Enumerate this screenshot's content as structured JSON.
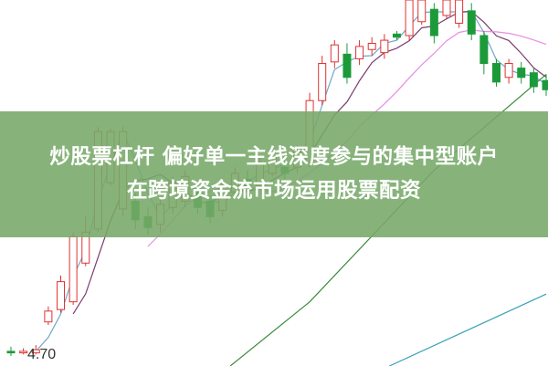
{
  "headline": {
    "line1": "炒股票杠杆 偏好单一主线深度参与的集中型账户",
    "line2": "在跨境资金流市场运用股票配资"
  },
  "chart_data": {
    "type": "candlestick",
    "price_label": "4.70",
    "ylim": [
      4.7,
      7.0
    ],
    "colors": {
      "up": "#e0322f",
      "down": "#1c9a3a",
      "ma5": "#6fa8c8",
      "ma10": "#7a3b6e",
      "ma20": "#e88ce0",
      "ma_long": "#3a8a3a",
      "ma_long2": "#3aa0b8"
    },
    "candles": [
      [
        4.73,
        4.72,
        4.76,
        4.7
      ],
      [
        4.72,
        4.73,
        4.75,
        4.71
      ],
      [
        4.72,
        4.74,
        4.77,
        4.71
      ],
      [
        4.92,
        4.99,
        5.02,
        4.9
      ],
      [
        5.0,
        5.18,
        5.22,
        4.98
      ],
      [
        5.05,
        5.47,
        5.5,
        5.03
      ],
      [
        5.3,
        5.5,
        5.6,
        5.28
      ],
      [
        5.52,
        6.15,
        6.18,
        5.5
      ],
      [
        5.82,
        6.15,
        6.17,
        5.8
      ],
      [
        5.65,
        6.15,
        6.18,
        5.6
      ],
      [
        5.7,
        5.58,
        5.75,
        5.52
      ],
      [
        5.6,
        5.53,
        5.66,
        5.48
      ],
      [
        5.55,
        5.68,
        5.72,
        5.5
      ],
      [
        5.66,
        5.82,
        5.86,
        5.62
      ],
      [
        5.7,
        5.86,
        5.9,
        5.66
      ],
      [
        5.78,
        5.66,
        5.82,
        5.62
      ],
      [
        5.7,
        5.6,
        5.74,
        5.56
      ],
      [
        5.64,
        5.8,
        5.84,
        5.6
      ],
      [
        5.76,
        5.88,
        5.92,
        5.74
      ],
      [
        5.84,
        5.8,
        5.9,
        5.76
      ],
      [
        5.8,
        5.94,
        5.98,
        5.78
      ],
      [
        5.88,
        5.99,
        6.02,
        5.86
      ],
      [
        5.92,
        5.88,
        6.0,
        5.84
      ],
      [
        5.92,
        6.02,
        6.06,
        5.88
      ],
      [
        5.95,
        6.35,
        6.4,
        5.92
      ],
      [
        6.35,
        6.59,
        6.64,
        6.32
      ],
      [
        6.6,
        6.71,
        6.74,
        6.56
      ],
      [
        6.65,
        6.5,
        6.72,
        6.46
      ],
      [
        6.62,
        6.7,
        6.74,
        6.58
      ],
      [
        6.68,
        6.72,
        6.76,
        6.64
      ],
      [
        6.66,
        6.74,
        6.78,
        6.62
      ],
      [
        6.78,
        6.76,
        6.8,
        6.74
      ],
      [
        6.77,
        7.0,
        7.05,
        6.74
      ],
      [
        6.86,
        7.0,
        7.05,
        6.84
      ],
      [
        6.94,
        6.77,
        6.98,
        6.72
      ],
      [
        6.9,
        7.0,
        7.03,
        6.88
      ],
      [
        6.85,
        7.0,
        7.03,
        6.82
      ],
      [
        6.93,
        6.78,
        6.98,
        6.74
      ],
      [
        6.77,
        6.59,
        6.8,
        6.52
      ],
      [
        6.59,
        6.47,
        6.62,
        6.44
      ],
      [
        6.5,
        6.59,
        6.62,
        6.46
      ],
      [
        6.56,
        6.5,
        6.6,
        6.46
      ],
      [
        6.53,
        6.44,
        6.56,
        6.4
      ],
      [
        6.48,
        6.42,
        6.52,
        6.38
      ]
    ],
    "ma_long": [
      [
        14,
        4.4
      ],
      [
        24,
        5.05
      ],
      [
        34,
        5.9
      ],
      [
        43,
        6.52
      ]
    ],
    "ma_long2": [
      [
        30,
        4.62
      ],
      [
        43,
        5.1
      ]
    ]
  }
}
